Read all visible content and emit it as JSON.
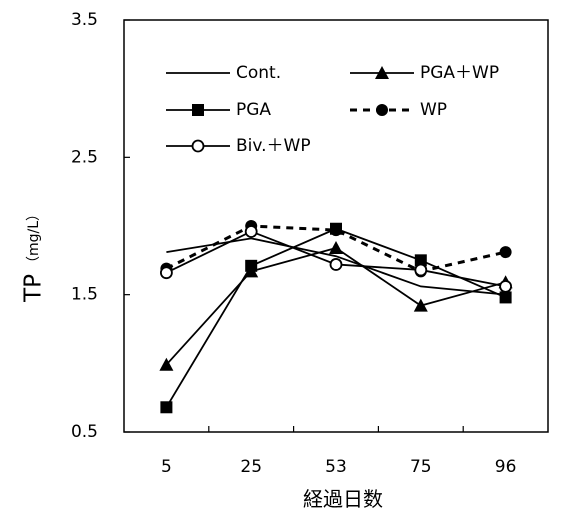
{
  "chart_data": {
    "type": "line",
    "title": "",
    "xlabel": "経過日数",
    "ylabel": "TP",
    "ylabel_unit": "（mg/L）",
    "categories": [
      "5",
      "25",
      "53",
      "75",
      "96"
    ],
    "ylim": [
      0.5,
      3.5
    ],
    "yticks": [
      "0.5",
      "1.5",
      "2.5",
      "3.5"
    ],
    "grid": false,
    "legend": "top-left, inside plot",
    "series": [
      {
        "name": "Cont.",
        "values": [
          1.81,
          1.91,
          1.78,
          1.56,
          1.5
        ],
        "marker": "none",
        "dash": "solid"
      },
      {
        "name": "PGA＋WP",
        "values": [
          0.99,
          1.67,
          1.84,
          1.42,
          1.59
        ],
        "marker": "triangle",
        "dash": "solid"
      },
      {
        "name": "PGA",
        "values": [
          0.68,
          1.71,
          1.98,
          1.75,
          1.48
        ],
        "marker": "square",
        "dash": "solid"
      },
      {
        "name": "WP",
        "values": [
          1.69,
          2.0,
          1.97,
          1.67,
          1.81
        ],
        "marker": "circle-filled",
        "dash": "dashed"
      },
      {
        "name": "Biv.＋WP",
        "values": [
          1.66,
          1.96,
          1.72,
          1.68,
          1.56
        ],
        "marker": "circle-open",
        "dash": "solid"
      }
    ]
  }
}
